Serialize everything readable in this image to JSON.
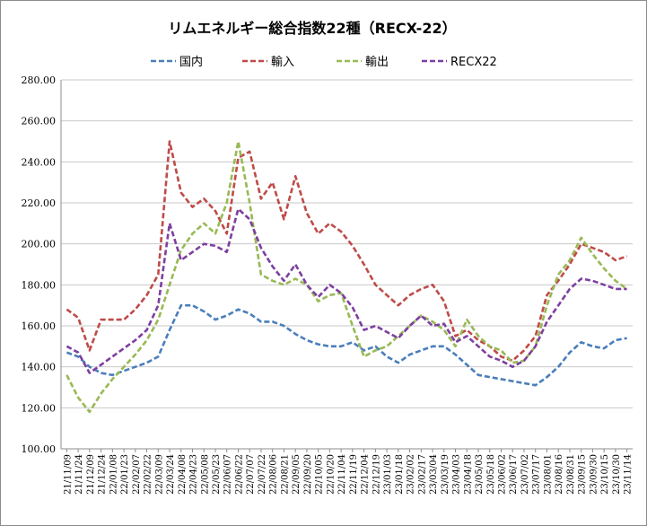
{
  "chart_data": {
    "type": "line",
    "title": "リムエネルギー総合指数22種（RECX-22）",
    "xlabel": "",
    "ylabel": "",
    "ylim": [
      100,
      280
    ],
    "yticks": [
      "100.00",
      "120.00",
      "140.00",
      "160.00",
      "180.00",
      "200.00",
      "220.00",
      "240.00",
      "260.00",
      "280.00"
    ],
    "grid": "horizontal",
    "legend_position": "top",
    "x_tick_labels": [
      "21/11/09",
      "21/11/24",
      "21/12/09",
      "21/12/24",
      "22/01/08",
      "22/01/23",
      "22/02/07",
      "22/02/22",
      "22/03/09",
      "22/03/24",
      "22/04/08",
      "22/04/23",
      "22/05/08",
      "22/05/23",
      "22/06/07",
      "22/06/22",
      "22/07/07",
      "22/07/22",
      "22/08/06",
      "22/08/21",
      "22/09/05",
      "22/09/20",
      "22/10/05",
      "22/10/20",
      "22/11/04",
      "22/11/19",
      "22/12/04",
      "22/12/19",
      "23/01/03",
      "23/01/18",
      "23/02/02",
      "23/02/17",
      "23/03/04",
      "23/03/19",
      "23/04/03",
      "23/04/18",
      "23/05/03",
      "23/05/18",
      "23/06/02",
      "23/06/17",
      "23/07/02",
      "23/07/17",
      "23/08/01",
      "23/08/16",
      "23/08/31",
      "23/09/15",
      "23/09/30",
      "23/10/15",
      "23/10/30",
      "23/11/14"
    ],
    "series": [
      {
        "name": "国内",
        "color": "#4a7ebb",
        "values": [
          147,
          145,
          140,
          137,
          136,
          138,
          140,
          142,
          145,
          158,
          170,
          170,
          167,
          163,
          165,
          168,
          166,
          162,
          162,
          160,
          156,
          153,
          151,
          150,
          150,
          152,
          148,
          150,
          145,
          142,
          146,
          148,
          150,
          150,
          146,
          141,
          136,
          135,
          134,
          133,
          132,
          131,
          135,
          140,
          147,
          152,
          150,
          149,
          153,
          154
        ]
      },
      {
        "name": "輸入",
        "color": "#be4b48",
        "values": [
          168,
          164,
          148,
          163,
          163,
          163,
          168,
          175,
          185,
          250,
          225,
          218,
          222,
          216,
          205,
          242,
          245,
          222,
          230,
          212,
          233,
          215,
          205,
          210,
          206,
          199,
          190,
          180,
          175,
          170,
          175,
          178,
          180,
          172,
          155,
          158,
          153,
          150,
          145,
          143,
          148,
          155,
          175,
          182,
          190,
          200,
          198,
          196,
          192,
          194
        ]
      },
      {
        "name": "輸出",
        "color": "#98b954",
        "values": [
          136,
          125,
          118,
          127,
          134,
          140,
          146,
          153,
          163,
          180,
          197,
          205,
          210,
          205,
          220,
          250,
          220,
          185,
          182,
          180,
          183,
          180,
          172,
          175,
          176,
          160,
          145,
          148,
          150,
          155,
          160,
          165,
          162,
          158,
          150,
          163,
          155,
          150,
          148,
          142,
          143,
          150,
          170,
          185,
          192,
          203,
          195,
          188,
          182,
          178
        ]
      },
      {
        "name": "RECX22",
        "color": "#7d3fa0",
        "values": [
          150,
          147,
          137,
          141,
          145,
          149,
          153,
          158,
          170,
          210,
          192,
          196,
          200,
          199,
          196,
          217,
          212,
          198,
          189,
          182,
          190,
          180,
          174,
          180,
          176,
          169,
          158,
          160,
          157,
          154,
          160,
          165,
          160,
          161,
          152,
          155,
          150,
          145,
          143,
          140,
          143,
          150,
          162,
          170,
          178,
          183,
          182,
          180,
          178,
          178
        ]
      }
    ]
  }
}
